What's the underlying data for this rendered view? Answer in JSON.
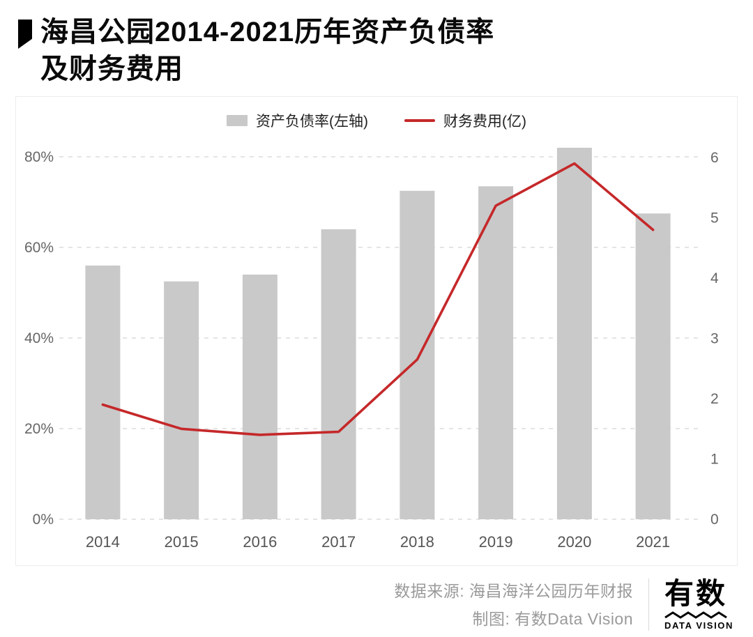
{
  "page": {
    "title_line1": "海昌公园2014-2021历年资产负债率",
    "title_line2": "及财务费用"
  },
  "chart_data": {
    "type": "bar+line combo",
    "categories": [
      "2014",
      "2015",
      "2016",
      "2017",
      "2018",
      "2019",
      "2020",
      "2021"
    ],
    "series": [
      {
        "name": "资产负债率(左轴)",
        "type": "bar",
        "axis": "left",
        "unit": "%",
        "values": [
          56,
          52.5,
          54,
          64,
          72.5,
          73.5,
          82,
          67.5
        ],
        "color": "#c9c9c9"
      },
      {
        "name": "财务费用(亿)",
        "type": "line",
        "axis": "right",
        "unit": "亿",
        "values": [
          1.9,
          1.5,
          1.4,
          1.45,
          2.65,
          5.2,
          5.9,
          4.8
        ],
        "color": "#c5282a"
      }
    ],
    "left_axis": {
      "ticks": [
        "0%",
        "20%",
        "40%",
        "60%",
        "80%"
      ],
      "tick_values": [
        0,
        20,
        40,
        60,
        80
      ],
      "range": [
        0,
        84
      ]
    },
    "right_axis": {
      "ticks": [
        0,
        1,
        2,
        3,
        4,
        5,
        6
      ],
      "range": [
        0,
        6.35
      ]
    },
    "grid": "dashed horizontal",
    "legend_position": "top-center"
  },
  "footer": {
    "source": "数据来源: 海昌海洋公园历年财报",
    "credit": "制图: 有数Data Vision",
    "logo_text": "有数",
    "logo_sub": "DATA VISION"
  },
  "colors": {
    "bar": "#c9c9c9",
    "line": "#c5282a",
    "grid": "#dcdcdc",
    "tick_text": "#666666",
    "footer_text": "#9a9a9a"
  }
}
